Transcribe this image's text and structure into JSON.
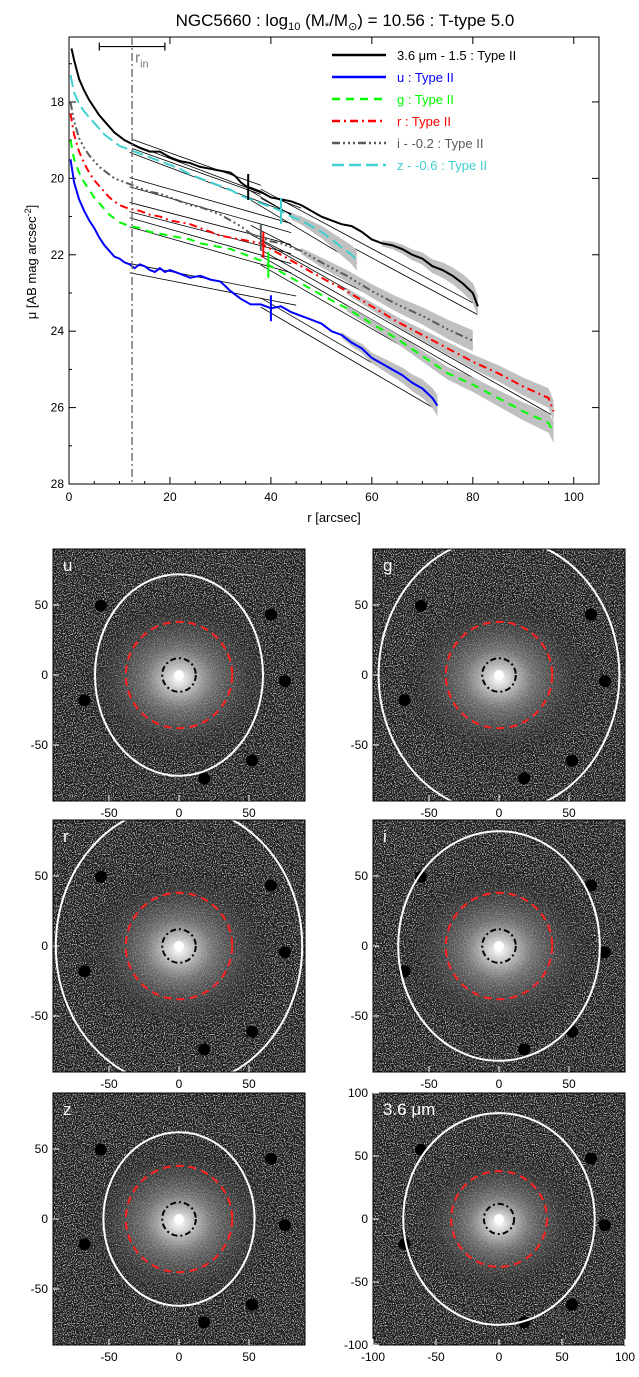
{
  "title": {
    "main": "NGC5660 : log",
    "sub10": "10",
    "mid": " (M",
    "sub_star": "*",
    "slash": "/M",
    "sub_sun": "⊙",
    "tail": ") = 10.56 : T-type 5.0"
  },
  "chart_data": [
    {
      "type": "line",
      "xlabel": "r [arcsec]",
      "ylabel_main": "μ [AB mag arcsec",
      "ylabel_sup": "-2",
      "ylabel_tail": "]",
      "xlim": [
        0,
        105
      ],
      "ylim": [
        28,
        16.3
      ],
      "y_inverted": true,
      "xticks": [
        0,
        20,
        40,
        60,
        80,
        100
      ],
      "yticks": [
        18,
        20,
        22,
        24,
        26,
        28
      ],
      "legend_position": "top-right",
      "annotations": {
        "r_in": 12.5,
        "r_in_label": "r",
        "r_in_sub": "in",
        "r_in_errbar": [
          6,
          19
        ],
        "r_in_errbar_y": 16.55
      },
      "series": [
        {
          "name": "3.6 μm - 1.5 : Type II",
          "color": "#000000",
          "dash": "",
          "break": 35.5,
          "x": [
            0.5,
            1,
            2,
            3,
            4,
            5,
            6,
            7,
            8,
            9,
            10,
            11,
            12.5,
            14,
            16,
            18,
            20,
            22,
            24,
            26,
            28,
            30,
            32,
            33,
            34,
            35,
            36,
            38,
            40,
            42,
            44,
            46,
            48,
            50,
            52,
            54,
            56,
            58,
            60,
            62,
            64,
            66,
            68,
            70,
            72,
            74,
            76,
            78,
            80,
            81
          ],
          "y": [
            16.6,
            16.9,
            17.4,
            17.7,
            17.95,
            18.15,
            18.35,
            18.5,
            18.65,
            18.8,
            18.9,
            19.0,
            19.1,
            19.2,
            19.3,
            19.3,
            19.45,
            19.55,
            19.6,
            19.7,
            19.75,
            19.8,
            19.85,
            19.95,
            20.1,
            20.2,
            20.25,
            20.35,
            20.5,
            20.55,
            20.6,
            20.7,
            20.85,
            21.0,
            21.1,
            21.2,
            21.25,
            21.4,
            21.6,
            21.7,
            21.75,
            21.85,
            22.0,
            22.1,
            22.3,
            22.4,
            22.55,
            22.75,
            23.0,
            23.35
          ],
          "fit_inner": [
            [
              12.5,
              19.1
            ],
            [
              38,
              20.3
            ]
          ],
          "fit_outer": [
            [
              38,
              20.4
            ],
            [
              81,
              23.45
            ]
          ]
        },
        {
          "name": "u : Type II",
          "color": "#0000ff",
          "dash": "",
          "break": 40,
          "x": [
            0.3,
            1,
            2,
            3,
            4,
            5,
            6,
            7,
            8,
            9,
            10,
            11,
            12,
            13,
            14,
            15,
            16,
            17,
            18,
            19,
            20,
            22,
            24,
            26,
            28,
            30,
            32,
            34,
            36,
            38,
            40,
            42,
            44,
            46,
            48,
            50,
            52,
            54,
            56,
            58,
            60,
            62,
            64,
            66,
            68,
            70,
            72,
            73
          ],
          "y": [
            19.5,
            20.1,
            20.55,
            20.85,
            21.1,
            21.3,
            21.55,
            21.75,
            21.9,
            22.05,
            22.1,
            22.2,
            22.25,
            22.35,
            22.25,
            22.3,
            22.4,
            22.45,
            22.35,
            22.45,
            22.4,
            22.5,
            22.6,
            22.55,
            22.65,
            22.7,
            22.95,
            23.15,
            23.3,
            23.3,
            23.4,
            23.35,
            23.5,
            23.6,
            23.7,
            23.8,
            24.0,
            24.1,
            24.3,
            24.45,
            24.7,
            24.85,
            25.0,
            25.15,
            25.35,
            25.5,
            25.75,
            25.95
          ],
          "fit_inner": [
            [
              12,
              22.35
            ],
            [
              45,
              23.2
            ]
          ],
          "fit_outer": [
            [
              38,
              23.25
            ],
            [
              73,
              25.95
            ]
          ]
        },
        {
          "name": "g : Type II",
          "color": "#00ff00",
          "dash": "8,6",
          "break": 39.5,
          "x": [
            0.3,
            1,
            2,
            3,
            4,
            5,
            6,
            7,
            8,
            9,
            10,
            11,
            12,
            14,
            16,
            18,
            20,
            22,
            24,
            26,
            28,
            30,
            32,
            34,
            36,
            38,
            40,
            42,
            44,
            46,
            48,
            50,
            55,
            60,
            65,
            70,
            75,
            80,
            85,
            90,
            95,
            96
          ],
          "y": [
            19.0,
            19.5,
            19.85,
            20.1,
            20.3,
            20.5,
            20.65,
            20.8,
            20.95,
            21.05,
            21.15,
            21.2,
            21.25,
            21.3,
            21.4,
            21.45,
            21.5,
            21.55,
            21.6,
            21.7,
            21.75,
            21.8,
            21.85,
            21.95,
            22.05,
            22.15,
            22.3,
            22.45,
            22.6,
            22.75,
            22.9,
            23.05,
            23.4,
            23.8,
            24.2,
            24.65,
            25.1,
            25.4,
            25.75,
            26.1,
            26.4,
            26.65
          ],
          "fit_inner": [
            [
              12,
              21.15
            ],
            [
              44,
              22.35
            ]
          ],
          "fit_outer": [
            [
              38,
              22.15
            ],
            [
              96,
              26.55
            ]
          ]
        },
        {
          "name": "r : Type II",
          "color": "#ff0000",
          "dash": "8,4,2,4",
          "break": 38.5,
          "x": [
            0.3,
            1,
            2,
            3,
            4,
            5,
            6,
            7,
            8,
            9,
            10,
            11,
            12,
            14,
            16,
            18,
            20,
            22,
            24,
            26,
            28,
            30,
            32,
            34,
            36,
            38,
            40,
            42,
            44,
            46,
            48,
            50,
            55,
            60,
            65,
            70,
            75,
            80,
            85,
            90,
            95,
            96
          ],
          "y": [
            18.3,
            18.85,
            19.3,
            19.6,
            19.85,
            20.05,
            20.2,
            20.35,
            20.5,
            20.6,
            20.7,
            20.75,
            20.8,
            20.85,
            20.95,
            21.0,
            21.1,
            21.15,
            21.2,
            21.3,
            21.4,
            21.5,
            21.55,
            21.6,
            21.65,
            21.7,
            21.85,
            22.0,
            22.15,
            22.3,
            22.45,
            22.6,
            22.95,
            23.35,
            23.75,
            24.1,
            24.45,
            24.8,
            25.1,
            25.45,
            25.75,
            26.1
          ],
          "fit_inner": [
            [
              12,
              20.75
            ],
            [
              44,
              21.85
            ]
          ],
          "fit_outer": [
            [
              38,
              21.75
            ],
            [
              96,
              26.1
            ]
          ]
        },
        {
          "name": "i - -0.2 : Type II",
          "color": "#5a5a5a",
          "dash": "8,3,2,3,2,3,2,3",
          "break": 38,
          "x": [
            0.3,
            1,
            2,
            3,
            4,
            5,
            6,
            7,
            8,
            9,
            10,
            11,
            12,
            14,
            16,
            18,
            20,
            22,
            24,
            26,
            28,
            30,
            32,
            34,
            36,
            38,
            40,
            42,
            44,
            46,
            48,
            50,
            55,
            60,
            65,
            70,
            75,
            80
          ],
          "y": [
            18.0,
            18.5,
            18.95,
            19.2,
            19.4,
            19.55,
            19.7,
            19.8,
            19.9,
            20.0,
            20.05,
            20.1,
            20.15,
            20.25,
            20.35,
            20.4,
            20.5,
            20.6,
            20.7,
            20.75,
            20.85,
            20.95,
            21.1,
            21.25,
            21.45,
            21.55,
            21.65,
            21.7,
            21.8,
            21.9,
            22.05,
            22.2,
            22.55,
            22.95,
            23.3,
            23.6,
            23.95,
            24.25
          ],
          "fit_inner": [
            [
              12,
              20.1
            ],
            [
              44,
              21.3
            ]
          ],
          "fit_outer": [
            [
              36,
              21.35
            ],
            [
              80,
              24.3
            ]
          ]
        },
        {
          "name": "z - -0.6 : Type II",
          "color": "#40d0d0",
          "dash": "12,5",
          "break": 42,
          "x": [
            0.3,
            1,
            2,
            3,
            4,
            5,
            6,
            7,
            8,
            9,
            10,
            11,
            12,
            14,
            16,
            18,
            20,
            22,
            24,
            26,
            28,
            30,
            32,
            34,
            36,
            38,
            40,
            42,
            44,
            46,
            48,
            50,
            52,
            54,
            56,
            57
          ],
          "y": [
            17.3,
            17.75,
            18.05,
            18.25,
            18.4,
            18.55,
            18.7,
            18.85,
            18.95,
            19.05,
            19.15,
            19.2,
            19.25,
            19.35,
            19.45,
            19.55,
            19.65,
            19.75,
            19.9,
            20.0,
            20.1,
            20.2,
            20.3,
            20.45,
            20.55,
            20.65,
            20.75,
            20.85,
            21.0,
            21.1,
            21.25,
            21.4,
            21.6,
            21.8,
            22.0,
            22.15
          ],
          "fit_inner": [
            [
              12,
              19.2
            ],
            [
              46,
              20.9
            ]
          ],
          "fit_outer": [
            [
              36,
              20.45
            ],
            [
              57,
              22.1
            ]
          ]
        }
      ]
    },
    {
      "type": "image",
      "panels": [
        {
          "label": "u",
          "ticks": [
            "-50",
            "0",
            "50"
          ],
          "outer_ellipse": [
            60,
            72
          ],
          "inner_ellipse": [
            38,
            38
          ],
          "core_ellipse": [
            12,
            12
          ]
        },
        {
          "label": "g",
          "ticks": [
            "-50",
            "0",
            "50"
          ],
          "outer_ellipse": [
            86,
            98
          ],
          "inner_ellipse": [
            38,
            38
          ],
          "core_ellipse": [
            12,
            12
          ]
        },
        {
          "label": "r",
          "ticks": [
            "-50",
            "0",
            "50"
          ],
          "outer_ellipse": [
            88,
            100
          ],
          "inner_ellipse": [
            38,
            38
          ],
          "core_ellipse": [
            12,
            12
          ]
        },
        {
          "label": "i",
          "ticks": [
            "-50",
            "0",
            "50"
          ],
          "outer_ellipse": [
            72,
            82
          ],
          "inner_ellipse": [
            38,
            38
          ],
          "core_ellipse": [
            12,
            12
          ]
        },
        {
          "label": "z",
          "ticks": [
            "-50",
            "0",
            "50"
          ],
          "outer_ellipse": [
            54,
            62
          ],
          "inner_ellipse": [
            38,
            38
          ],
          "core_ellipse": [
            12,
            12
          ]
        },
        {
          "label": "3.6 μm",
          "ticks": [
            "-100",
            "-50",
            "0",
            "50",
            "100"
          ],
          "outer_ellipse": [
            76,
            84
          ],
          "inner_ellipse": [
            38,
            38
          ],
          "core_ellipse": [
            12,
            12
          ]
        }
      ]
    }
  ]
}
